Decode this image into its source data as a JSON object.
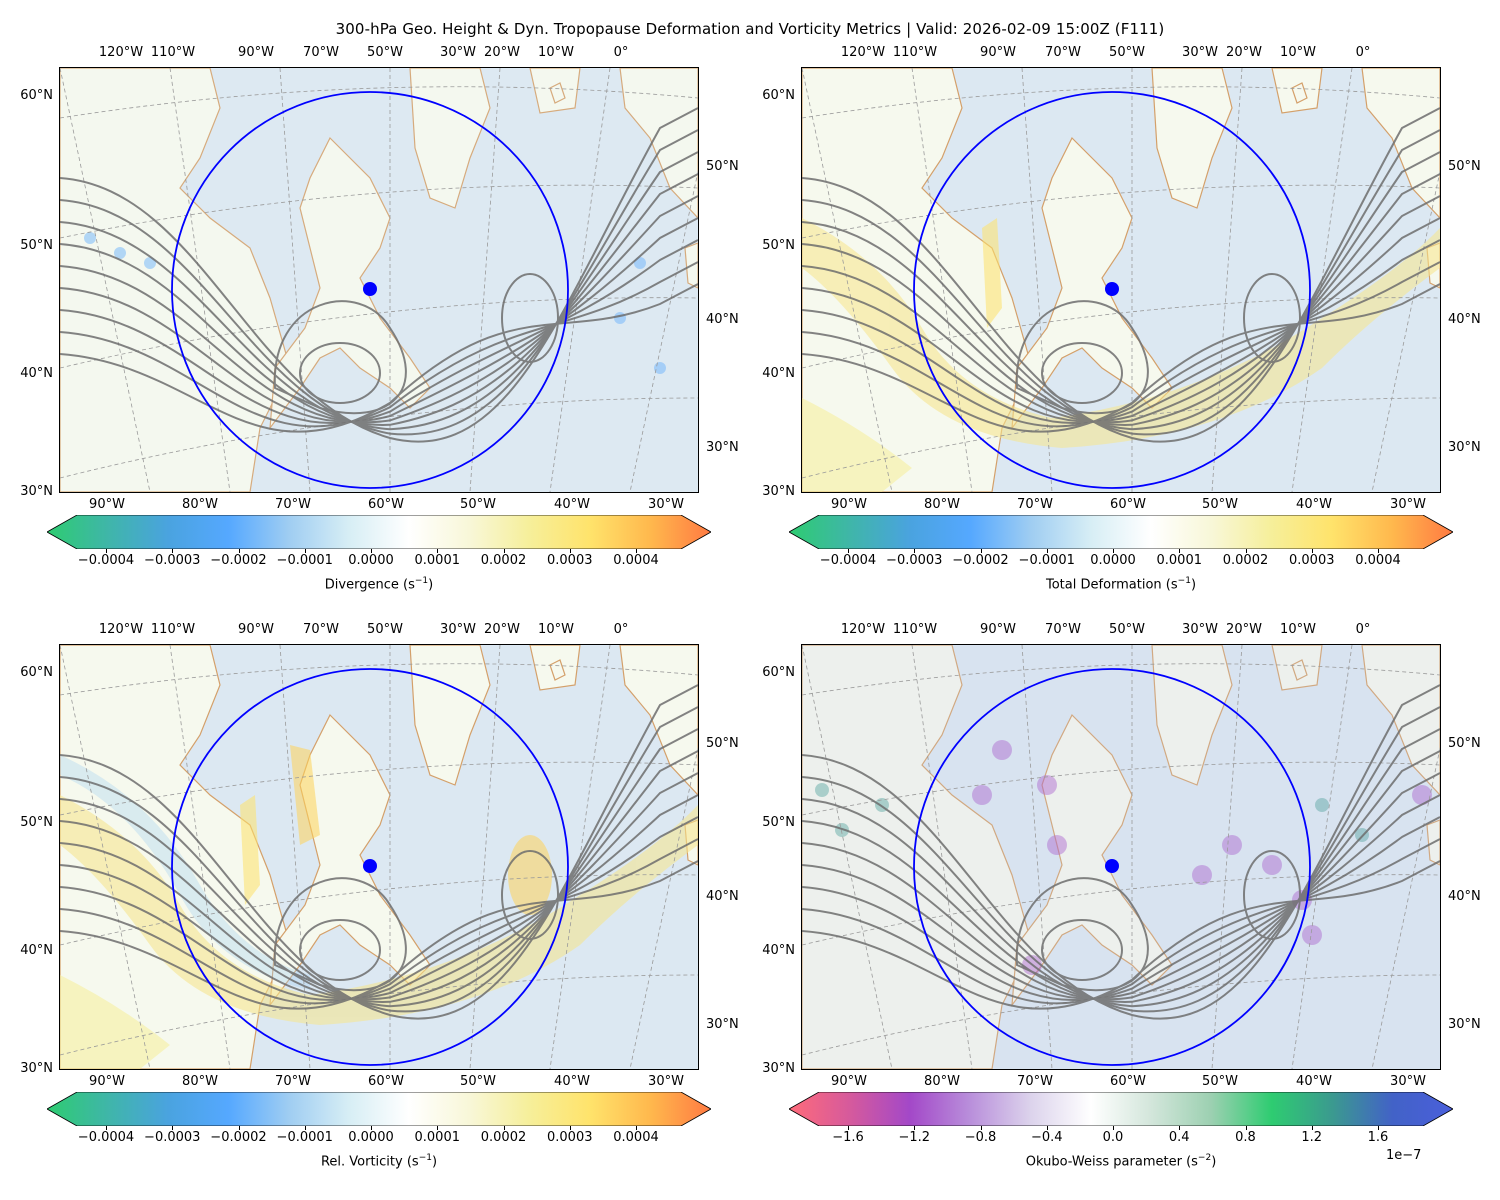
{
  "title": "300-hPa Geo. Height & Dyn. Tropopause Deformation and Vorticity Metrics |  Valid: 2026-02-09 15:00Z (F111)",
  "map_labels": {
    "top_lon": [
      "120°W",
      "110°W",
      "90°W",
      "70°W",
      "50°W",
      "30°W",
      "20°W",
      "10°W",
      "0°"
    ],
    "bottom_lon": [
      "90°W",
      "80°W",
      "70°W",
      "60°W",
      "50°W",
      "40°W",
      "30°W"
    ],
    "left_lat": [
      "60°N",
      "50°N",
      "40°N",
      "30°N"
    ],
    "right_lat": [
      "50°N",
      "40°N",
      "30°N"
    ]
  },
  "panels": [
    {
      "id": "divergence",
      "colorbar": {
        "label": "Divergence (s",
        "unit_exp": "−1",
        "label_close": ")",
        "ticks": [
          "−0.0004",
          "−0.0003",
          "−0.0002",
          "−0.0001",
          "0.0000",
          "0.0001",
          "0.0002",
          "0.0003",
          "0.0004"
        ],
        "colors": [
          "#2ecc71",
          "#3fb6a8",
          "#4aa3df",
          "#55a8ff",
          "#9fcdf2",
          "#d7eef5",
          "#ffffff",
          "#f8f7d8",
          "#f6ef9a",
          "#ffe36b",
          "#ffb84d",
          "#ff7a42"
        ]
      },
      "field_theme": "blue-dots"
    },
    {
      "id": "deformation",
      "colorbar": {
        "label": "Total Deformation (s",
        "unit_exp": "−1",
        "label_close": ")",
        "ticks": [
          "−0.0004",
          "−0.0003",
          "−0.0002",
          "−0.0001",
          "0.0000",
          "0.0001",
          "0.0002",
          "0.0003",
          "0.0004"
        ],
        "colors": [
          "#2ecc71",
          "#3fb6a8",
          "#4aa3df",
          "#55a8ff",
          "#9fcdf2",
          "#d7eef5",
          "#ffffff",
          "#f8f7d8",
          "#f6ef9a",
          "#ffe36b",
          "#ffb84d",
          "#ff7a42"
        ]
      },
      "field_theme": "yellow"
    },
    {
      "id": "vorticity",
      "colorbar": {
        "label": "Rel. Vorticity (s",
        "unit_exp": "−1",
        "label_close": ")",
        "ticks": [
          "−0.0004",
          "−0.0003",
          "−0.0002",
          "−0.0001",
          "0.0000",
          "0.0001",
          "0.0002",
          "0.0003",
          "0.0004"
        ],
        "colors": [
          "#2ecc71",
          "#3fb6a8",
          "#4aa3df",
          "#55a8ff",
          "#9fcdf2",
          "#d7eef5",
          "#ffffff",
          "#f8f7d8",
          "#f6ef9a",
          "#ffe36b",
          "#ffb84d",
          "#ff7a42"
        ]
      },
      "field_theme": "yellow-band"
    },
    {
      "id": "okubo-weiss",
      "colorbar": {
        "label": "Okubo-Weiss parameter (s",
        "unit_exp": "−2",
        "label_close": ")",
        "ticks": [
          "−1.6",
          "−1.2",
          "−0.8",
          "−0.4",
          "0.0",
          "0.4",
          "0.8",
          "1.2",
          "1.6"
        ],
        "colors": [
          "#ff6b7a",
          "#d65a9c",
          "#a348c8",
          "#b98fdb",
          "#dcd3ec",
          "#ffffff",
          "#d3e6db",
          "#9cd0b1",
          "#2ecc71",
          "#3b9a8f",
          "#4262c7",
          "#4a5fdb"
        ],
        "exponent": "1e−7"
      },
      "field_theme": "purple"
    }
  ],
  "colors": {
    "circle": "#0000ff",
    "contour": "#6e6e6e",
    "coast": "#d4a06a",
    "ocean": "#dce8f2",
    "land": "#f6f9ee"
  }
}
